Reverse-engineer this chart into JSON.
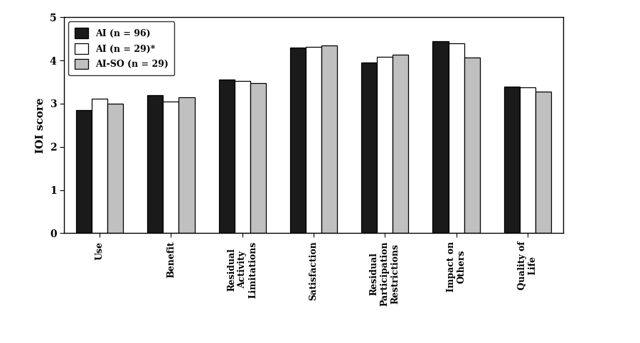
{
  "categories": [
    "Use",
    "Benefit",
    "Residual\nActivity\nLimitations",
    "Satisfaction",
    "Residual\nParticipation\nRestrictions",
    "Impact on\nOthers",
    "Quality of\nLife"
  ],
  "series": [
    {
      "label": "AI (n = 96)",
      "color": "#1a1a1a",
      "edgecolor": "#000000",
      "values": [
        2.85,
        3.2,
        3.55,
        4.3,
        3.95,
        4.45,
        3.4
      ]
    },
    {
      "label": "AI (n = 29)*",
      "color": "#ffffff",
      "edgecolor": "#000000",
      "values": [
        3.12,
        3.05,
        3.52,
        4.32,
        4.08,
        4.4,
        3.38
      ]
    },
    {
      "label": "AI-SO (n = 29)",
      "color": "#c0c0c0",
      "edgecolor": "#000000",
      "values": [
        3.0,
        3.15,
        3.48,
        4.35,
        4.13,
        4.07,
        3.27
      ]
    }
  ],
  "ylabel": "IOI score",
  "ylim": [
    0,
    5
  ],
  "yticks": [
    0,
    1,
    2,
    3,
    4,
    5
  ],
  "bar_width": 0.22,
  "legend_loc": "upper left",
  "figsize": [
    9.0,
    4.83
  ],
  "dpi": 100
}
